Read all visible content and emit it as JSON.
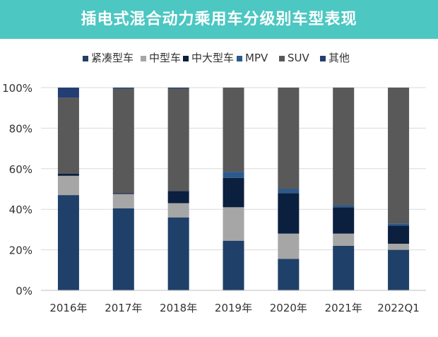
{
  "title": "插电式混合动力乘用车分级别车型表现",
  "chart_data": {
    "type": "bar",
    "stacked": true,
    "percent": true,
    "title": "插电式混合动力乘用车分级别车型表现",
    "xlabel": "",
    "ylabel": "",
    "ylim": [
      0,
      100
    ],
    "yticks": [
      "0%",
      "20%",
      "40%",
      "60%",
      "80%",
      "100%"
    ],
    "grid": true,
    "legend_position": "top",
    "categories": [
      "2016年",
      "2017年",
      "2018年",
      "2019年",
      "2020年",
      "2021年",
      "2022Q1"
    ],
    "series": [
      {
        "name": "紧凑型车",
        "color": "#1f4068",
        "values": [
          47,
          40.5,
          36,
          24.5,
          15.5,
          22,
          20
        ]
      },
      {
        "name": "中型车",
        "color": "#a6a6a6",
        "values": [
          9.5,
          7,
          7,
          16.5,
          12.5,
          6,
          3
        ]
      },
      {
        "name": "中大型车",
        "color": "#0b1f3f",
        "values": [
          1,
          0.5,
          6,
          14.5,
          20,
          13,
          9
        ]
      },
      {
        "name": "MPV",
        "color": "#2c5a8c",
        "values": [
          0,
          0,
          0,
          3,
          2,
          1,
          1
        ]
      },
      {
        "name": "SUV",
        "color": "#595959",
        "values": [
          37.5,
          51.5,
          50.5,
          41.5,
          50,
          58,
          67
        ]
      },
      {
        "name": "其他",
        "color": "#233e73",
        "values": [
          5,
          0.5,
          0.5,
          0,
          0,
          0,
          0
        ]
      }
    ]
  }
}
